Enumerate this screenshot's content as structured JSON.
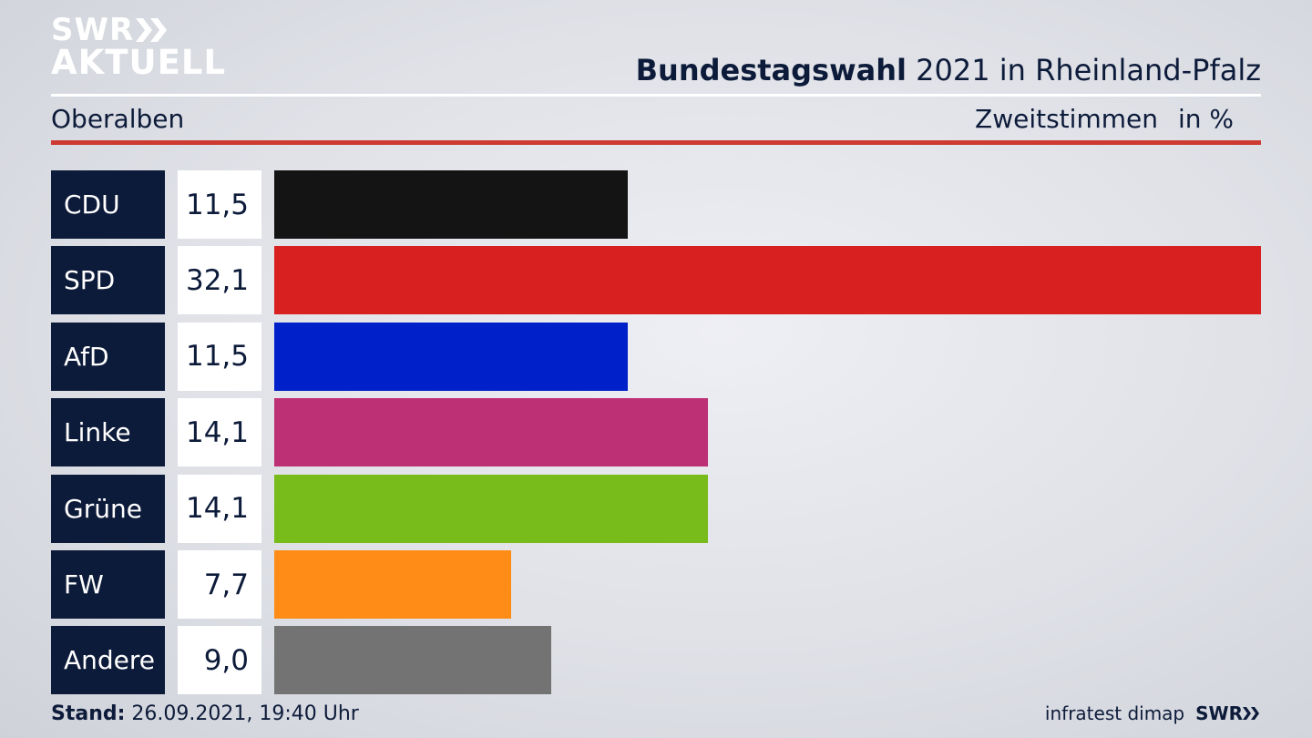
{
  "logo": {
    "line1": "SWR",
    "line2": "AKTUELL"
  },
  "header": {
    "title_bold": "Bundestagswahl",
    "title_rest": " 2021 in Rheinland-Pfalz"
  },
  "subheader": {
    "region": "Oberalben",
    "metric": "Zweitstimmen",
    "unit": "in %"
  },
  "footer": {
    "stand_label": "Stand:",
    "stand_value": " 26.09.2021, 19:40 Uhr",
    "source": "infratest dimap",
    "brand": "SWR"
  },
  "chart_data": {
    "type": "bar",
    "orientation": "horizontal",
    "categories": [
      "CDU",
      "SPD",
      "AfD",
      "Linke",
      "Grüne",
      "FW",
      "Andere"
    ],
    "values": [
      11.5,
      32.1,
      11.5,
      14.1,
      14.1,
      7.7,
      9.0
    ],
    "value_labels": [
      "11,5",
      "32,1",
      "11,5",
      "14,1",
      "14,1",
      "7,7",
      "9,0"
    ],
    "colors": [
      "#141414",
      "#d82020",
      "#0021c9",
      "#bd3075",
      "#78bc1b",
      "#ff8c17",
      "#737373"
    ],
    "xlim": [
      0,
      32.1
    ],
    "grid": false
  }
}
